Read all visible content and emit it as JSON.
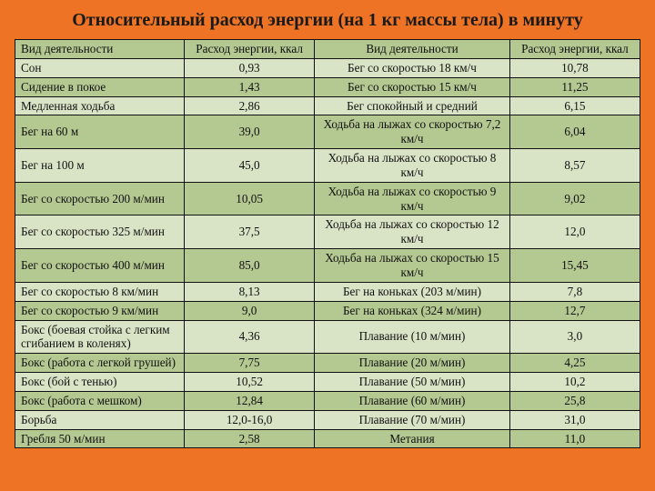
{
  "title": "Относительный расход энергии (на 1 кг массы тела) в минуту",
  "colors": {
    "background": "#ee7324",
    "header_row": "#b4c891",
    "row_light": "#d9e4c6",
    "row_dark": "#b4c891",
    "border": "#111111",
    "text": "#111111",
    "title_text": "#1a1a1a"
  },
  "typography": {
    "title_fontsize_pt": 15,
    "title_weight": "bold",
    "body_fontsize_pt": 10,
    "font_family": "Times New Roman"
  },
  "table": {
    "type": "table",
    "column_widths_pct": [
      26,
      20,
      30,
      20
    ],
    "alignments": [
      "left",
      "center",
      "center",
      "center"
    ],
    "headers": [
      "Вид деятельности",
      "Расход энергии, ккал",
      "Вид деятельности",
      "Расход энергии, ккал"
    ],
    "rows": [
      [
        "Сон",
        "0,93",
        "Бег со скоростью 18 км/ч",
        "10,78"
      ],
      [
        "Сидение в покое",
        "1,43",
        "Бег со скоростью 15 км/ч",
        "11,25"
      ],
      [
        "Медленная ходьба",
        "2,86",
        "Бег спокойный и средний",
        "6,15"
      ],
      [
        "Бег на 60 м",
        "39,0",
        "Ходьба на лыжах со скоростью 7,2 км/ч",
        "6,04"
      ],
      [
        "Бег на 100 м",
        "45,0",
        "Ходьба на лыжах со скоростью 8 км/ч",
        "8,57"
      ],
      [
        "Бег со скоростью 200 м/мин",
        "10,05",
        "Ходьба на лыжах со скоростью 9 км/ч",
        "9,02"
      ],
      [
        "Бег со скоростью\n325 м/мин",
        "37,5",
        "Ходьба на лыжах со скоростью 12 км/ч",
        "12,0"
      ],
      [
        "Бег со скоростью 400 м/мин",
        "85,0",
        "Ходьба на лыжах со скоростью 15 км/ч",
        "15,45"
      ],
      [
        "Бег со скоростью 8 км/мин",
        "8,13",
        "Бег на коньках (203 м/мин)",
        "7,8"
      ],
      [
        "Бег со скоростью 9 км/мин",
        "9,0",
        "Бег на коньках (324 м/мин)",
        "12,7"
      ],
      [
        "Бокс (боевая стойка с легким сгибанием в коленях)",
        "4,36",
        "Плавание (10 м/мин)",
        "3,0"
      ],
      [
        "Бокс (работа с легкой грушей)",
        "7,75",
        "Плавание (20 м/мин)",
        "4,25"
      ],
      [
        "Бокс (бой с тенью)",
        "10,52",
        "Плавание (50 м/мин)",
        "10,2"
      ],
      [
        "Бокс (работа с мешком)",
        "12,84",
        "Плавание (60 м/мин)",
        "25,8"
      ],
      [
        "Борьба",
        "12,0-16,0",
        "Плавание (70 м/мин)",
        "31,0"
      ],
      [
        "Гребля 50 м/мин",
        "2,58",
        "Метания",
        "11,0"
      ]
    ]
  }
}
